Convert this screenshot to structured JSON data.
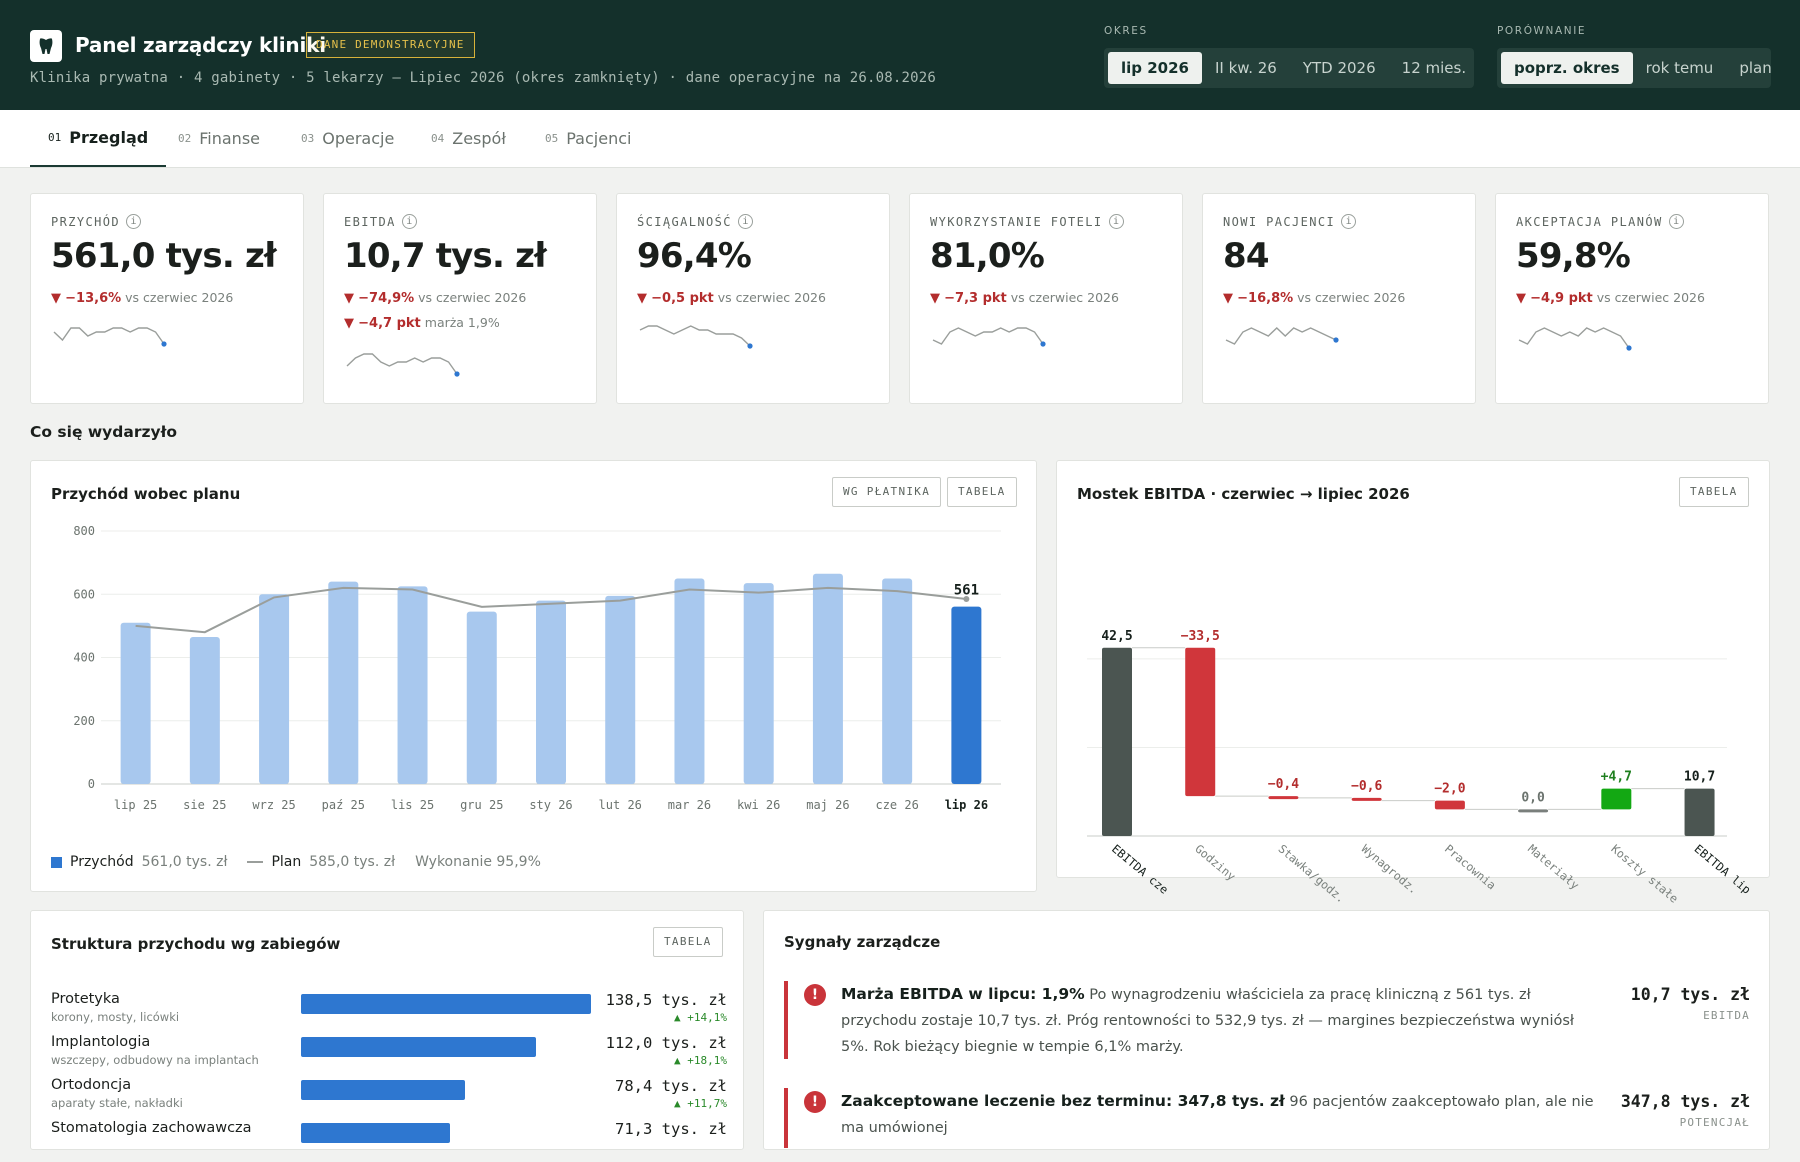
{
  "header": {
    "title": "Panel zarządczy kliniki",
    "badge": "DANE DEMONSTRACYJNE",
    "subtitle": "Klinika prywatna · 4 gabinety · 5 lekarzy — Lipiec 2026 (okres zamknięty) · dane operacyjne na 26.08.2026",
    "period_label": "OKRES",
    "period_options": [
      "lip 2026",
      "II kw. 26",
      "YTD 2026",
      "12 mies."
    ],
    "period_selected": 0,
    "compare_label": "PORÓWNANIE",
    "compare_options": [
      "poprz. okres",
      "rok temu",
      "plan"
    ],
    "compare_selected": 0,
    "logo_icon": "tooth-icon"
  },
  "tabs": [
    {
      "num": "01",
      "label": "Przegląd",
      "active": true
    },
    {
      "num": "02",
      "label": "Finanse",
      "active": false
    },
    {
      "num": "03",
      "label": "Operacje",
      "active": false
    },
    {
      "num": "04",
      "label": "Zespół",
      "active": false
    },
    {
      "num": "05",
      "label": "Pacjenci",
      "active": false
    }
  ],
  "kpis": [
    {
      "label": "PRZYCHÓD",
      "value": "561,0 tys. zł",
      "deltas": [
        {
          "value": "−13,6%",
          "cmp": "vs czerwiec 2026"
        }
      ],
      "spark": [
        5,
        3,
        6,
        6,
        4,
        5,
        5,
        6,
        6,
        5,
        6,
        6,
        5,
        2
      ]
    },
    {
      "label": "EBITDA",
      "value": "10,7 tys. zł",
      "deltas": [
        {
          "value": "−74,9%",
          "cmp": "vs czerwiec 2026"
        },
        {
          "value": "−4,7 pkt",
          "cmp": "marża 1,9%"
        }
      ],
      "spark": [
        3,
        5,
        6,
        6,
        4,
        3,
        4,
        4,
        5,
        4,
        5,
        5,
        4,
        1
      ]
    },
    {
      "label": "ŚCIĄGALNOŚĆ",
      "value": "96,4%",
      "deltas": [
        {
          "value": "−0,5 pkt",
          "cmp": "vs czerwiec 2026"
        }
      ],
      "spark": [
        5,
        6,
        6,
        5,
        4,
        5,
        6,
        5,
        5,
        4,
        4,
        4,
        3,
        1
      ]
    },
    {
      "label": "WYKORZYSTANIE FOTELI",
      "value": "81,0%",
      "deltas": [
        {
          "value": "−7,3 pkt",
          "cmp": "vs czerwiec 2026"
        }
      ],
      "spark": [
        3,
        2,
        5,
        6,
        5,
        4,
        5,
        5,
        6,
        5,
        6,
        6,
        5,
        2
      ]
    },
    {
      "label": "NOWI PACJENCI",
      "value": "84",
      "deltas": [
        {
          "value": "−16,8%",
          "cmp": "vs czerwiec 2026"
        }
      ],
      "spark": [
        3,
        2,
        5,
        6,
        5,
        4,
        6,
        4,
        6,
        5,
        6,
        5,
        4,
        3
      ]
    },
    {
      "label": "AKCEPTACJA PLANÓW",
      "value": "59,8%",
      "deltas": [
        {
          "value": "−4,9 pkt",
          "cmp": "vs czerwiec 2026"
        }
      ],
      "spark": [
        3,
        2,
        5,
        6,
        5,
        4,
        5,
        4,
        6,
        5,
        6,
        5,
        4,
        1
      ]
    }
  ],
  "section_title": "Co się wydarzyło",
  "revenue_panel": {
    "title": "Przychód wobec planu",
    "btn_payer": "WG PŁATNIKA",
    "btn_table": "TABELA",
    "legend_revenue": "Przychód",
    "legend_revenue_value": "561,0 tys. zł",
    "legend_plan": "Plan",
    "legend_plan_value": "585,0 tys. zł",
    "legend_execution": "Wykonanie 95,9%",
    "last_label": "561",
    "colors": {
      "bar": "#a8c8ee",
      "bar_current": "#2e77d0",
      "plan_line": "#9a9e9b"
    }
  },
  "ebitda_panel": {
    "title": "Mostek EBITDA · czerwiec → lipiec 2026",
    "btn_table": "TABELA",
    "colors": {
      "total": "#4b5551",
      "neg": "#d0363b",
      "pos": "#13a813",
      "zero": "#7a7f7c"
    }
  },
  "treatments_panel": {
    "title": "Struktura przychodu wg zabiegów",
    "btn_table": "TABELA",
    "max": 138.5,
    "items": [
      {
        "name": "Protetyka",
        "sub": "korony, mosty, licówki",
        "value": 138.5,
        "value_label": "138,5 tys. zł",
        "delta": "▲ +14,1%"
      },
      {
        "name": "Implantologia",
        "sub": "wszczepy, odbudowy na implantach",
        "value": 112.0,
        "value_label": "112,0 tys. zł",
        "delta": "▲ +18,1%"
      },
      {
        "name": "Ortodoncja",
        "sub": "aparaty stałe, nakładki",
        "value": 78.4,
        "value_label": "78,4 tys. zł",
        "delta": "▲ +11,7%"
      },
      {
        "name": "Stomatologia zachowawcza",
        "sub": "",
        "value": 71.3,
        "value_label": "71,3 tys. zł",
        "delta": ""
      }
    ]
  },
  "signals_panel": {
    "title": "Sygnały zarządcze",
    "items": [
      {
        "head": "Marża EBITDA w lipcu: 1,9%",
        "body": "Po wynagrodzeniu właściciela za pracę kliniczną z 561 tys. zł przychodu zostaje 10,7 tys. zł. Próg rentowności to 532,9 tys. zł — margines bezpieczeństwa wyniósł 5%. Rok bieżący biegnie w tempie 6,1% marży.",
        "value": "10,7 tys. zł",
        "caption": "EBITDA"
      },
      {
        "head": "Zaakceptowane leczenie bez terminu: 347,8 tys. zł",
        "body": "96 pacjentów zaakceptowało plan, ale nie ma umówionej",
        "value": "347,8 tys. zł",
        "caption": "POTENCJAŁ"
      }
    ]
  },
  "chart_data": [
    {
      "type": "bar",
      "title": "Przychód wobec planu",
      "categories": [
        "lip 25",
        "sie 25",
        "wrz 25",
        "paź 25",
        "lis 25",
        "gru 25",
        "sty 26",
        "lut 26",
        "mar 26",
        "kwi 26",
        "maj 26",
        "cze 26",
        "lip 26"
      ],
      "series": [
        {
          "name": "Przychód",
          "type": "bar",
          "values": [
            510,
            465,
            600,
            640,
            625,
            545,
            580,
            595,
            650,
            635,
            665,
            650,
            561
          ]
        },
        {
          "name": "Plan",
          "type": "line",
          "values": [
            500,
            480,
            590,
            620,
            615,
            560,
            570,
            580,
            615,
            605,
            620,
            610,
            585
          ]
        }
      ],
      "ylim": [
        0,
        800
      ],
      "yticks": [
        0,
        200,
        400,
        600,
        800
      ],
      "grid": true
    },
    {
      "type": "bar",
      "subtype": "waterfall",
      "title": "Mostek EBITDA · czerwiec → lipiec 2026",
      "categories": [
        "EBITDA cze",
        "Godziny",
        "Stawka/godz.",
        "Wynagrodz.",
        "Pracownia",
        "Materiały",
        "Koszty stałe",
        "EBITDA lip"
      ],
      "values": [
        42.5,
        -33.5,
        -0.4,
        -0.6,
        -2.0,
        0.0,
        4.7,
        10.7
      ],
      "labels": [
        "42,5",
        "−33,5",
        "−0,4",
        "−0,6",
        "−2,0",
        "0,0",
        "+4,7",
        "10,7"
      ],
      "kinds": [
        "total",
        "neg",
        "neg",
        "neg",
        "neg",
        "zero",
        "pos",
        "total"
      ]
    }
  ]
}
